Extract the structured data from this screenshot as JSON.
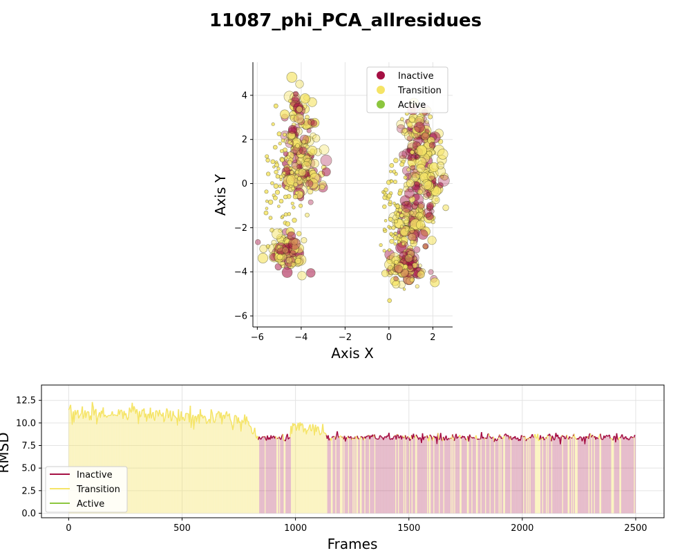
{
  "figure": {
    "title": "11087_phi_PCA_allresidues"
  },
  "colors": {
    "Inactive": "#a50f43",
    "Transition": "#f5e466",
    "Active": "#8cc63e"
  },
  "chart_data": [
    {
      "type": "scatter",
      "xlabel": "Axis X",
      "ylabel": "Axis Y",
      "xlim": [
        -6.2,
        2.9
      ],
      "ylim": [
        -6.5,
        5.5
      ],
      "xticks": [
        -6,
        -4,
        -2,
        0,
        2
      ],
      "yticks": [
        -6,
        -4,
        -2,
        0,
        2,
        4
      ],
      "xtick_labels": [
        "−6",
        "−4",
        "−2",
        "0",
        "2"
      ],
      "ytick_labels": [
        "−6",
        "−4",
        "−2",
        "0",
        "2",
        "4"
      ],
      "grid": true,
      "legend_position": "top-right",
      "legend": [
        "Inactive",
        "Transition",
        "Active"
      ],
      "clusters": [
        {
          "name": "left-upper",
          "center": [
            -4.1,
            2.2
          ],
          "spread": [
            0.35,
            1.0
          ]
        },
        {
          "name": "left-middle",
          "center": [
            -3.9,
            0.6
          ],
          "spread": [
            0.45,
            0.7
          ]
        },
        {
          "name": "left-far-scatter",
          "center": [
            -4.9,
            0.2
          ],
          "spread": [
            0.4,
            1.2
          ]
        },
        {
          "name": "left-lower",
          "center": [
            -4.7,
            -3.1
          ],
          "spread": [
            0.4,
            0.45
          ]
        },
        {
          "name": "right-upper",
          "center": [
            1.4,
            2.2
          ],
          "spread": [
            0.4,
            0.7
          ]
        },
        {
          "name": "right-middle",
          "center": [
            1.6,
            0.0
          ],
          "spread": [
            0.45,
            0.8
          ]
        },
        {
          "name": "right-lower-mid",
          "center": [
            1.1,
            -1.8
          ],
          "spread": [
            0.45,
            0.6
          ]
        },
        {
          "name": "right-bottom",
          "center": [
            0.8,
            -3.8
          ],
          "spread": [
            0.45,
            0.35
          ]
        },
        {
          "name": "right-far-scatter",
          "center": [
            0.2,
            -1.0
          ],
          "spread": [
            0.3,
            1.4
          ]
        }
      ]
    },
    {
      "type": "line",
      "xlabel": "Frames",
      "ylabel": "RMSD",
      "xlim": [
        -120,
        2625
      ],
      "ylim": [
        -0.5,
        14.2
      ],
      "xticks": [
        0,
        500,
        1000,
        1500,
        2000,
        2500
      ],
      "yticks": [
        0.0,
        2.5,
        5.0,
        7.5,
        10.0,
        12.5
      ],
      "xtick_labels": [
        "0",
        "500",
        "1000",
        "1500",
        "2000",
        "2500"
      ],
      "ytick_labels": [
        "0.0",
        "2.5",
        "5.0",
        "7.5",
        "10.0",
        "12.5"
      ],
      "grid": true,
      "legend_position": "bottom-left",
      "legend": [
        "Inactive",
        "Transition",
        "Active"
      ],
      "frames": 2500,
      "segments": [
        {
          "from": 0,
          "to": 800,
          "state": "Transition",
          "start_level": 11.2,
          "end_level": 10.4,
          "noise": 0.9
        },
        {
          "from": 800,
          "to": 840,
          "state": "Transition",
          "start_level": 9.5,
          "end_level": 8.4,
          "noise": 0.4
        },
        {
          "from": 840,
          "to": 980,
          "state": "Inactive",
          "start_level": 8.4,
          "end_level": 8.4,
          "noise": 0.35
        },
        {
          "from": 980,
          "to": 1140,
          "state": "Transition",
          "start_level": 9.6,
          "end_level": 9.0,
          "noise": 0.7
        },
        {
          "from": 1140,
          "to": 2500,
          "state": "Inactive",
          "start_level": 8.4,
          "end_level": 8.4,
          "noise": 0.35
        }
      ]
    }
  ]
}
